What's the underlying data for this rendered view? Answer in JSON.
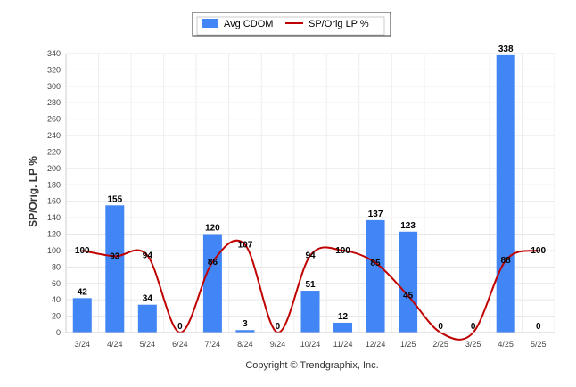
{
  "chart_data": {
    "type": "bar",
    "categories": [
      "3/24",
      "4/24",
      "5/24",
      "6/24",
      "7/24",
      "8/24",
      "9/24",
      "10/24",
      "11/24",
      "12/24",
      "1/25",
      "2/25",
      "3/25",
      "4/25",
      "5/25"
    ],
    "series": [
      {
        "name": "Avg CDOM",
        "type": "bar",
        "color": "#4285f4",
        "values": [
          42,
          155,
          34,
          0,
          120,
          3,
          0,
          51,
          12,
          137,
          123,
          0,
          0,
          338,
          0
        ]
      },
      {
        "name": "SP/Orig LP %",
        "type": "line",
        "color": "#c00000",
        "values": [
          100,
          93,
          94,
          0,
          86,
          107,
          0,
          94,
          100,
          85,
          45,
          0,
          0,
          88,
          100
        ],
        "labels": [
          "100",
          "93",
          "94",
          "",
          "86",
          "107",
          "",
          "94",
          "100",
          "85",
          "45",
          "",
          "",
          "88",
          "100"
        ]
      }
    ],
    "ylabel": "SP/Orig. LP %",
    "ylim": [
      0,
      340
    ],
    "yticks": [
      0,
      20,
      40,
      60,
      80,
      100,
      120,
      140,
      160,
      180,
      200,
      220,
      240,
      260,
      280,
      300,
      320,
      340
    ],
    "grid": true,
    "legend_position": "top-center"
  },
  "footer": {
    "copyright": "Copyright © Trendgraphix, Inc."
  }
}
